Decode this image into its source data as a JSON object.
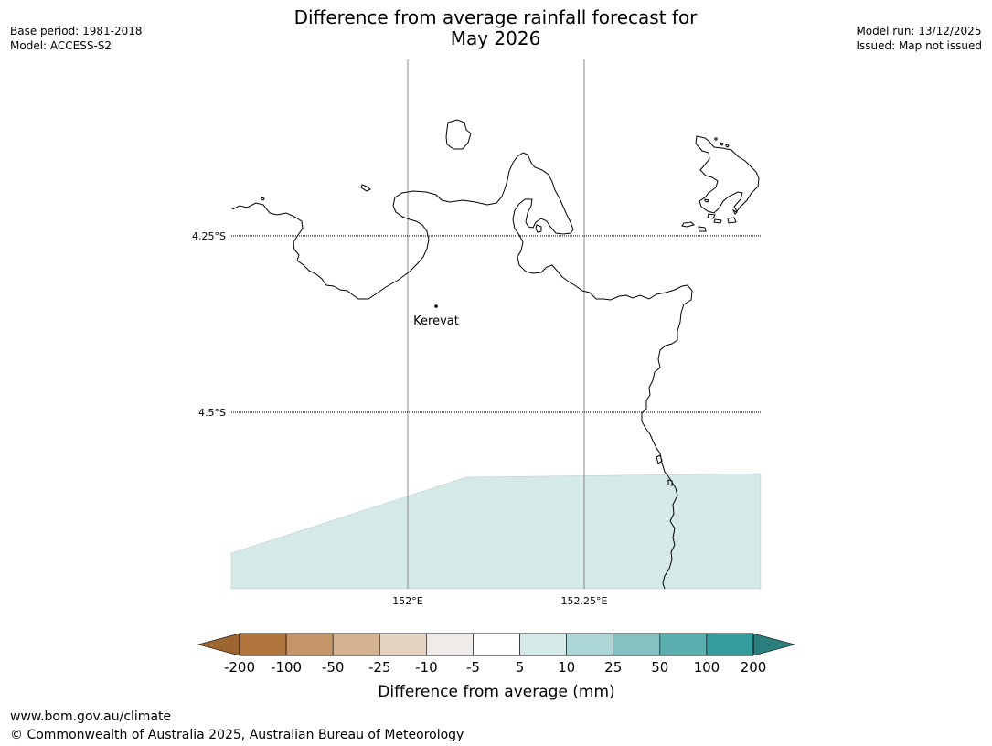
{
  "title": {
    "line1": "Difference from average rainfall forecast for",
    "line2": "May 2026"
  },
  "meta_left": {
    "base_period": "Base period: 1981-2018",
    "model": "Model: ACCESS-S2"
  },
  "meta_right": {
    "model_run": "Model run: 13/12/2025",
    "issued": "Issued: Map not issued"
  },
  "map": {
    "lat_labels": [
      "4.25°S",
      "4.5°S"
    ],
    "lon_labels": [
      "152°E",
      "152.25°E"
    ],
    "place": "Kerevat"
  },
  "colorbar": {
    "label": "Difference from average (mm)",
    "ticks": [
      "-200",
      "-100",
      "-50",
      "-25",
      "-10",
      "-5",
      "5",
      "10",
      "25",
      "50",
      "100",
      "200"
    ],
    "colors": {
      "below_min": "#9c6532",
      "bins": [
        "#b0763e",
        "#c39568",
        "#d4b391",
        "#e5d2c0",
        "#efebe9",
        "#ffffff",
        "#d4e9e8",
        "#acd6d6",
        "#84c2c1",
        "#5bafaf",
        "#349c9b"
      ],
      "above_max": "#2b7f7e"
    }
  },
  "forecast_fill_color": "#d4e9e8",
  "footer": {
    "url": "www.bom.gov.au/climate",
    "copyright": "© Commonwealth of Australia 2025, Australian Bureau of Meteorology"
  }
}
